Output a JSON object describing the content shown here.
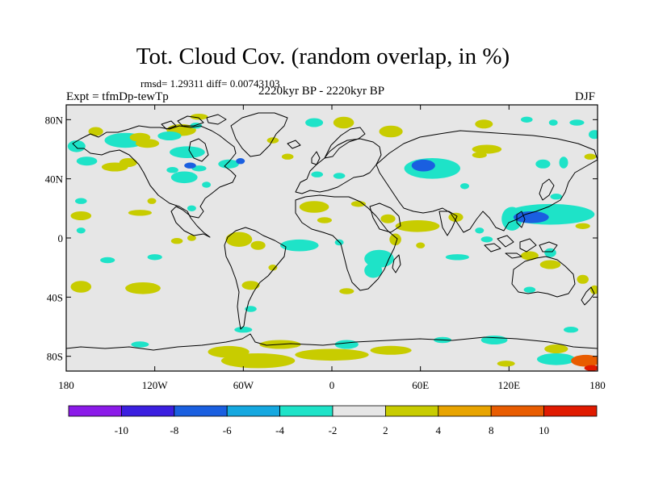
{
  "header": {
    "title": "Tot. Cloud Cov. (random overlap, in %)",
    "stats": "rmsd= 1.29311  diff= 0.00743103",
    "experiment": "Expt = tfmDp-tewTp",
    "period": "2220kyr BP - 2220kyr BP",
    "season": "DJF"
  },
  "map": {
    "projection": "cylindrical-equidistant",
    "lon_range": [
      -180,
      180
    ],
    "lat_range": [
      -90,
      90
    ],
    "background_color": "#e6e6e6",
    "y_ticks": [
      {
        "lat": 80,
        "label": "80N"
      },
      {
        "lat": 40,
        "label": "40N"
      },
      {
        "lat": 0,
        "label": "0"
      },
      {
        "lat": -40,
        "label": "40S"
      },
      {
        "lat": -80,
        "label": "80S"
      }
    ],
    "x_ticks": [
      {
        "lon": -180,
        "label": "180"
      },
      {
        "lon": -120,
        "label": "120W"
      },
      {
        "lon": -60,
        "label": "60W"
      },
      {
        "lon": 0,
        "label": "0"
      },
      {
        "lon": 60,
        "label": "60E"
      },
      {
        "lon": 120,
        "label": "120E"
      },
      {
        "lon": 180,
        "label": "180"
      }
    ],
    "anomaly_regions": [
      {
        "lon": -160,
        "lat": 72,
        "rx": 5,
        "ry": 3,
        "level": 3
      },
      {
        "lon": -173,
        "lat": 62,
        "rx": 6,
        "ry": 4,
        "level": -3
      },
      {
        "lon": -140,
        "lat": 66,
        "rx": 14,
        "ry": 5,
        "level": -3
      },
      {
        "lon": -125,
        "lat": 64,
        "rx": 8,
        "ry": 3,
        "level": 3
      },
      {
        "lon": -130,
        "lat": 68,
        "rx": 7,
        "ry": 3,
        "level": 3
      },
      {
        "lon": -102,
        "lat": 73,
        "rx": 10,
        "ry": 4,
        "level": 3
      },
      {
        "lon": -110,
        "lat": 69,
        "rx": 8,
        "ry": 3,
        "level": -3
      },
      {
        "lon": -92,
        "lat": 76,
        "rx": 4,
        "ry": 2,
        "level": -3
      },
      {
        "lon": -90,
        "lat": 82,
        "rx": 6,
        "ry": 2,
        "level": 3
      },
      {
        "lon": -12,
        "lat": 78,
        "rx": 6,
        "ry": 3,
        "level": -3
      },
      {
        "lon": 8,
        "lat": 78,
        "rx": 7,
        "ry": 4,
        "level": 3
      },
      {
        "lon": 40,
        "lat": 72,
        "rx": 8,
        "ry": 4,
        "level": 3
      },
      {
        "lon": 103,
        "lat": 77,
        "rx": 6,
        "ry": 3,
        "level": 3
      },
      {
        "lon": 132,
        "lat": 80,
        "rx": 4,
        "ry": 2,
        "level": -3
      },
      {
        "lon": 150,
        "lat": 78,
        "rx": 3,
        "ry": 2,
        "level": -3
      },
      {
        "lon": 166,
        "lat": 78,
        "rx": 5,
        "ry": 2,
        "level": -3
      },
      {
        "lon": -40,
        "lat": 66,
        "rx": 4,
        "ry": 2,
        "level": 3
      },
      {
        "lon": 178,
        "lat": 70,
        "rx": 4,
        "ry": 3,
        "level": -3
      },
      {
        "lon": -166,
        "lat": 52,
        "rx": 7,
        "ry": 3,
        "level": -3
      },
      {
        "lon": -147,
        "lat": 48,
        "rx": 9,
        "ry": 3,
        "level": 3
      },
      {
        "lon": -138,
        "lat": 51,
        "rx": 6,
        "ry": 3,
        "level": 3
      },
      {
        "lon": -98,
        "lat": 58,
        "rx": 12,
        "ry": 4,
        "level": -3
      },
      {
        "lon": -70,
        "lat": 50,
        "rx": 7,
        "ry": 3,
        "level": -3
      },
      {
        "lon": -90,
        "lat": 47,
        "rx": 5,
        "ry": 2,
        "level": -3
      },
      {
        "lon": -108,
        "lat": 46,
        "rx": 4,
        "ry": 2,
        "level": -3
      },
      {
        "lon": -100,
        "lat": 41,
        "rx": 9,
        "ry": 4,
        "level": -3
      },
      {
        "lon": -96,
        "lat": 49,
        "rx": 4,
        "ry": 2,
        "level": -6
      },
      {
        "lon": -30,
        "lat": 55,
        "rx": 4,
        "ry": 2,
        "level": 3
      },
      {
        "lon": -85,
        "lat": 36,
        "rx": 3,
        "ry": 2,
        "level": -3
      },
      {
        "lon": -10,
        "lat": 43,
        "rx": 4,
        "ry": 2,
        "level": -3
      },
      {
        "lon": 5,
        "lat": 42,
        "rx": 4,
        "ry": 2,
        "level": -3
      },
      {
        "lon": 68,
        "lat": 47,
        "rx": 19,
        "ry": 7,
        "level": -3
      },
      {
        "lon": 62,
        "lat": 49,
        "rx": 8,
        "ry": 4,
        "level": -6
      },
      {
        "lon": 90,
        "lat": 35,
        "rx": 3,
        "ry": 2,
        "level": -3
      },
      {
        "lon": 105,
        "lat": 60,
        "rx": 10,
        "ry": 3,
        "level": 3
      },
      {
        "lon": 100,
        "lat": 56,
        "rx": 5,
        "ry": 2,
        "level": 3
      },
      {
        "lon": 143,
        "lat": 50,
        "rx": 5,
        "ry": 3,
        "level": -3
      },
      {
        "lon": 157,
        "lat": 51,
        "rx": 3,
        "ry": 4,
        "level": -3
      },
      {
        "lon": 175,
        "lat": 55,
        "rx": 4,
        "ry": 2,
        "level": 3
      },
      {
        "lon": -62,
        "lat": 52,
        "rx": 3,
        "ry": 2,
        "level": -6
      },
      {
        "lon": -170,
        "lat": 25,
        "rx": 4,
        "ry": 2,
        "level": -3
      },
      {
        "lon": -170,
        "lat": 15,
        "rx": 7,
        "ry": 3,
        "level": 3
      },
      {
        "lon": -130,
        "lat": 17,
        "rx": 8,
        "ry": 2,
        "level": 3
      },
      {
        "lon": -170,
        "lat": 5,
        "rx": 3,
        "ry": 2,
        "level": -3
      },
      {
        "lon": -95,
        "lat": 20,
        "rx": 3,
        "ry": 2,
        "level": -3
      },
      {
        "lon": -122,
        "lat": 25,
        "rx": 3,
        "ry": 2,
        "level": 3
      },
      {
        "lon": -12,
        "lat": 21,
        "rx": 10,
        "ry": 4,
        "level": 3
      },
      {
        "lon": -5,
        "lat": 12,
        "rx": 5,
        "ry": 2,
        "level": 3
      },
      {
        "lon": 18,
        "lat": 23,
        "rx": 5,
        "ry": 2,
        "level": 3
      },
      {
        "lon": 58,
        "lat": 8,
        "rx": 15,
        "ry": 4,
        "level": 3
      },
      {
        "lon": 38,
        "lat": 13,
        "rx": 5,
        "ry": 3,
        "level": 3
      },
      {
        "lon": 84,
        "lat": 14,
        "rx": 5,
        "ry": 3,
        "level": 3
      },
      {
        "lon": 122,
        "lat": 13,
        "rx": 7,
        "ry": 8,
        "level": -3
      },
      {
        "lon": 148,
        "lat": 16,
        "rx": 30,
        "ry": 7,
        "level": -3
      },
      {
        "lon": 135,
        "lat": 14,
        "rx": 12,
        "ry": 4,
        "level": -6
      },
      {
        "lon": 152,
        "lat": 28,
        "rx": 4,
        "ry": 2,
        "level": -3
      },
      {
        "lon": 170,
        "lat": 8,
        "rx": 5,
        "ry": 2,
        "level": 3
      },
      {
        "lon": 100,
        "lat": 5,
        "rx": 3,
        "ry": 2,
        "level": -3
      },
      {
        "lon": -95,
        "lat": 0,
        "rx": 3,
        "ry": 2,
        "level": 3
      },
      {
        "lon": -105,
        "lat": -2,
        "rx": 4,
        "ry": 2,
        "level": 3
      },
      {
        "lon": -63,
        "lat": -1,
        "rx": 9,
        "ry": 5,
        "level": 3
      },
      {
        "lon": -50,
        "lat": -5,
        "rx": 5,
        "ry": 3,
        "level": 3
      },
      {
        "lon": -22,
        "lat": -5,
        "rx": 13,
        "ry": 4,
        "level": -3
      },
      {
        "lon": 5,
        "lat": -3,
        "rx": 3,
        "ry": 2,
        "level": -3
      },
      {
        "lon": 43,
        "lat": -1,
        "rx": 4,
        "ry": 4,
        "level": 3
      },
      {
        "lon": 60,
        "lat": -5,
        "rx": 3,
        "ry": 2,
        "level": 3
      },
      {
        "lon": 32,
        "lat": -14,
        "rx": 10,
        "ry": 6,
        "level": -3
      },
      {
        "lon": 28,
        "lat": -22,
        "rx": 6,
        "ry": 5,
        "level": -3
      },
      {
        "lon": 85,
        "lat": -13,
        "rx": 8,
        "ry": 2,
        "level": -3
      },
      {
        "lon": 105,
        "lat": -1,
        "rx": 4,
        "ry": 2,
        "level": -3
      },
      {
        "lon": 148,
        "lat": -10,
        "rx": 4,
        "ry": 3,
        "level": -3
      },
      {
        "lon": 134,
        "lat": -12,
        "rx": 6,
        "ry": 3,
        "level": 3
      },
      {
        "lon": 148,
        "lat": -18,
        "rx": 7,
        "ry": 3,
        "level": 3
      },
      {
        "lon": -152,
        "lat": -15,
        "rx": 5,
        "ry": 2,
        "level": -3
      },
      {
        "lon": -120,
        "lat": -13,
        "rx": 5,
        "ry": 2,
        "level": -3
      },
      {
        "lon": -128,
        "lat": -34,
        "rx": 12,
        "ry": 4,
        "level": 3
      },
      {
        "lon": -170,
        "lat": -33,
        "rx": 7,
        "ry": 4,
        "level": 3
      },
      {
        "lon": -55,
        "lat": -32,
        "rx": 6,
        "ry": 3,
        "level": 3
      },
      {
        "lon": -40,
        "lat": -20,
        "rx": 3,
        "ry": 2,
        "level": 3
      },
      {
        "lon": 10,
        "lat": -36,
        "rx": 5,
        "ry": 2,
        "level": 3
      },
      {
        "lon": 170,
        "lat": -28,
        "rx": 4,
        "ry": 3,
        "level": 3
      },
      {
        "lon": 178,
        "lat": -35,
        "rx": 3,
        "ry": 3,
        "level": 3
      },
      {
        "lon": 134,
        "lat": -35,
        "rx": 4,
        "ry": 2,
        "level": -3
      },
      {
        "lon": -55,
        "lat": -48,
        "rx": 4,
        "ry": 2,
        "level": -3
      },
      {
        "lon": -130,
        "lat": -72,
        "rx": 6,
        "ry": 2,
        "level": -3
      },
      {
        "lon": -70,
        "lat": -77,
        "rx": 14,
        "ry": 4,
        "level": 3
      },
      {
        "lon": -50,
        "lat": -83,
        "rx": 25,
        "ry": 5,
        "level": 3
      },
      {
        "lon": -35,
        "lat": -72,
        "rx": 14,
        "ry": 3,
        "level": 3
      },
      {
        "lon": 0,
        "lat": -79,
        "rx": 25,
        "ry": 4,
        "level": 3
      },
      {
        "lon": 10,
        "lat": -72,
        "rx": 8,
        "ry": 3,
        "level": -3
      },
      {
        "lon": 40,
        "lat": -76,
        "rx": 14,
        "ry": 3,
        "level": 3
      },
      {
        "lon": 75,
        "lat": -69,
        "rx": 6,
        "ry": 2,
        "level": -3
      },
      {
        "lon": 110,
        "lat": -69,
        "rx": 9,
        "ry": 3,
        "level": -3
      },
      {
        "lon": 152,
        "lat": -82,
        "rx": 13,
        "ry": 4,
        "level": -3
      },
      {
        "lon": 152,
        "lat": -75,
        "rx": 8,
        "ry": 3,
        "level": 3
      },
      {
        "lon": 172,
        "lat": -83,
        "rx": 10,
        "ry": 4,
        "level": 8
      },
      {
        "lon": 176,
        "lat": -88,
        "rx": 5,
        "ry": 2,
        "level": 10
      },
      {
        "lon": 118,
        "lat": -85,
        "rx": 6,
        "ry": 2,
        "level": 3
      },
      {
        "lon": -60,
        "lat": -62,
        "rx": 6,
        "ry": 2,
        "level": -3
      },
      {
        "lon": 162,
        "lat": -62,
        "rx": 5,
        "ry": 2,
        "level": -3
      }
    ]
  },
  "colorbar": {
    "colors": [
      "#8b1ae8",
      "#3b1fe0",
      "#1a5fe0",
      "#15a8e0",
      "#1ee3c8",
      "#e6e6e6",
      "#c8cc00",
      "#e8a400",
      "#e85c00",
      "#e01a00"
    ],
    "labels": [
      "-10",
      "-8",
      "-6",
      "-4",
      "-2",
      "2",
      "4",
      "8",
      "10"
    ]
  }
}
